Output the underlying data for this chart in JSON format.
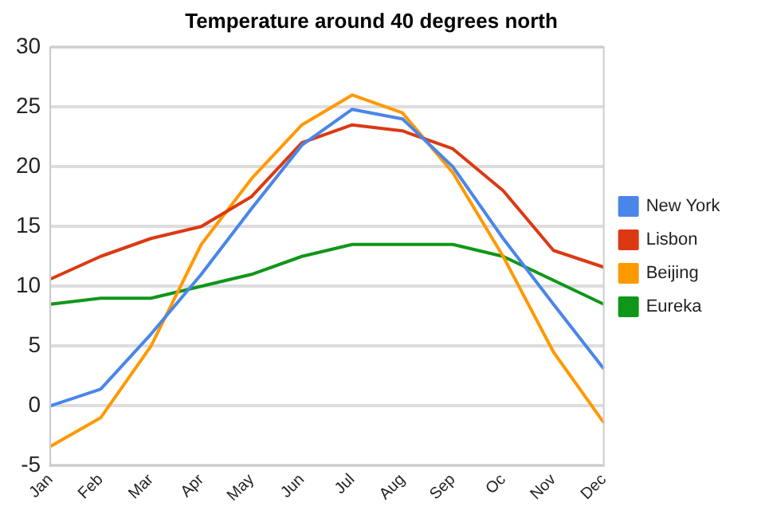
{
  "chart_data": {
    "type": "line",
    "title": "Temperature around 40 degrees north",
    "categories": [
      "Jan",
      "Feb",
      "Mar",
      "Apr",
      "May",
      "Jun",
      "Jul",
      "Aug",
      "Sep",
      "Oc",
      "Nov",
      "Dec"
    ],
    "series": [
      {
        "name": "New York",
        "color": "#4a86e8",
        "values": [
          0,
          1.4,
          6,
          11,
          16.5,
          21.8,
          24.8,
          24,
          20,
          14,
          8.5,
          3.1
        ]
      },
      {
        "name": "Lisbon",
        "color": "#dc3912",
        "values": [
          10.6,
          12.5,
          14,
          15,
          17.5,
          22,
          23.5,
          23,
          21.5,
          18,
          13,
          11.6
        ]
      },
      {
        "name": "Beijing",
        "color": "#ff9900",
        "values": [
          -3.4,
          -1,
          5,
          13.5,
          19,
          23.5,
          26,
          24.5,
          19.5,
          12.5,
          4.5,
          -1.4
        ]
      },
      {
        "name": "Eureka",
        "color": "#109618",
        "values": [
          8.5,
          9,
          9,
          10,
          11,
          12.5,
          13.5,
          13.5,
          13.5,
          12.5,
          10.5,
          8.5
        ]
      }
    ],
    "ylim": [
      -5,
      30
    ],
    "yticks": [
      -5,
      0,
      5,
      10,
      15,
      20,
      25,
      30
    ],
    "grid": "y",
    "legend": "right",
    "marker": "none"
  }
}
